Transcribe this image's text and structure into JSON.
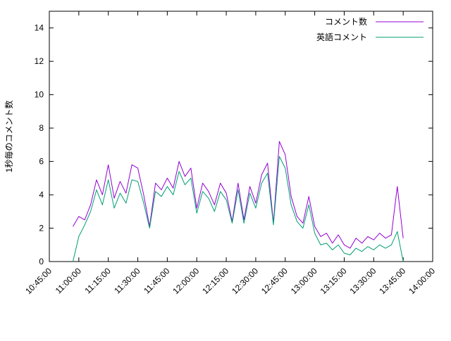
{
  "figure": {
    "background_color": "#ffffff",
    "border_color": "#000000",
    "text_color": "#000000"
  },
  "chart_data": {
    "type": "line",
    "title": "",
    "xlabel": "",
    "ylabel": "1秒毎のコメント数",
    "ylim": [
      0,
      15
    ],
    "yticks": [
      0,
      2,
      4,
      6,
      8,
      10,
      12,
      14
    ],
    "xticks": [
      "10:45:00",
      "11:00:00",
      "11:15:00",
      "11:30:00",
      "11:45:00",
      "12:00:00",
      "12:15:00",
      "12:30:00",
      "12:45:00",
      "13:00:00",
      "13:15:00",
      "13:30:00",
      "13:45:00",
      "14:00:00"
    ],
    "x_range": [
      "10:45:00",
      "14:00:00"
    ],
    "grid": false,
    "legend_position": "top-right-inside",
    "x": [
      "10:57:00",
      "11:00:00",
      "11:03:00",
      "11:06:00",
      "11:09:00",
      "11:12:00",
      "11:15:00",
      "11:18:00",
      "11:21:00",
      "11:24:00",
      "11:27:00",
      "11:30:00",
      "11:33:00",
      "11:36:00",
      "11:39:00",
      "11:42:00",
      "11:45:00",
      "11:48:00",
      "11:51:00",
      "11:54:00",
      "11:57:00",
      "12:00:00",
      "12:03:00",
      "12:06:00",
      "12:09:00",
      "12:12:00",
      "12:15:00",
      "12:18:00",
      "12:21:00",
      "12:24:00",
      "12:27:00",
      "12:30:00",
      "12:33:00",
      "12:36:00",
      "12:39:00",
      "12:42:00",
      "12:45:00",
      "12:48:00",
      "12:51:00",
      "12:54:00",
      "12:57:00",
      "13:00:00",
      "13:03:00",
      "13:06:00",
      "13:09:00",
      "13:12:00",
      "13:15:00",
      "13:18:00",
      "13:21:00",
      "13:24:00",
      "13:27:00",
      "13:30:00",
      "13:33:00",
      "13:36:00",
      "13:39:00",
      "13:42:00",
      "13:45:00"
    ],
    "series": [
      {
        "id": "comment-count",
        "name": "コメント数",
        "color": "#9400d3",
        "values": [
          2.1,
          2.7,
          2.5,
          3.4,
          4.9,
          4.0,
          5.8,
          3.8,
          4.8,
          4.1,
          5.8,
          5.6,
          4.0,
          2.1,
          4.7,
          4.3,
          5.0,
          4.4,
          6.0,
          5.1,
          5.6,
          3.2,
          4.7,
          4.2,
          3.4,
          4.7,
          4.1,
          2.4,
          4.7,
          2.5,
          4.5,
          3.5,
          5.2,
          5.9,
          2.3,
          7.2,
          6.4,
          3.9,
          2.7,
          2.3,
          3.9,
          2.1,
          1.5,
          1.7,
          1.1,
          1.6,
          1.0,
          0.8,
          1.4,
          1.1,
          1.5,
          1.3,
          1.7,
          1.4,
          1.6,
          4.5,
          1.4
        ]
      },
      {
        "id": "english-comments",
        "name": "英語コメント",
        "color": "#009e73",
        "values": [
          0.0,
          1.5,
          2.2,
          3.0,
          4.3,
          3.4,
          4.9,
          3.2,
          4.1,
          3.5,
          4.9,
          4.8,
          3.5,
          2.0,
          4.2,
          3.9,
          4.5,
          4.0,
          5.4,
          4.6,
          5.0,
          2.9,
          4.2,
          3.8,
          3.0,
          4.2,
          3.7,
          2.3,
          4.3,
          2.3,
          4.1,
          3.2,
          4.7,
          5.3,
          2.2,
          6.3,
          5.6,
          3.4,
          2.4,
          2.0,
          3.4,
          1.7,
          1.0,
          1.1,
          0.7,
          1.0,
          0.5,
          0.4,
          0.8,
          0.6,
          0.9,
          0.7,
          1.0,
          0.8,
          1.0,
          1.8,
          0.0
        ]
      }
    ]
  }
}
